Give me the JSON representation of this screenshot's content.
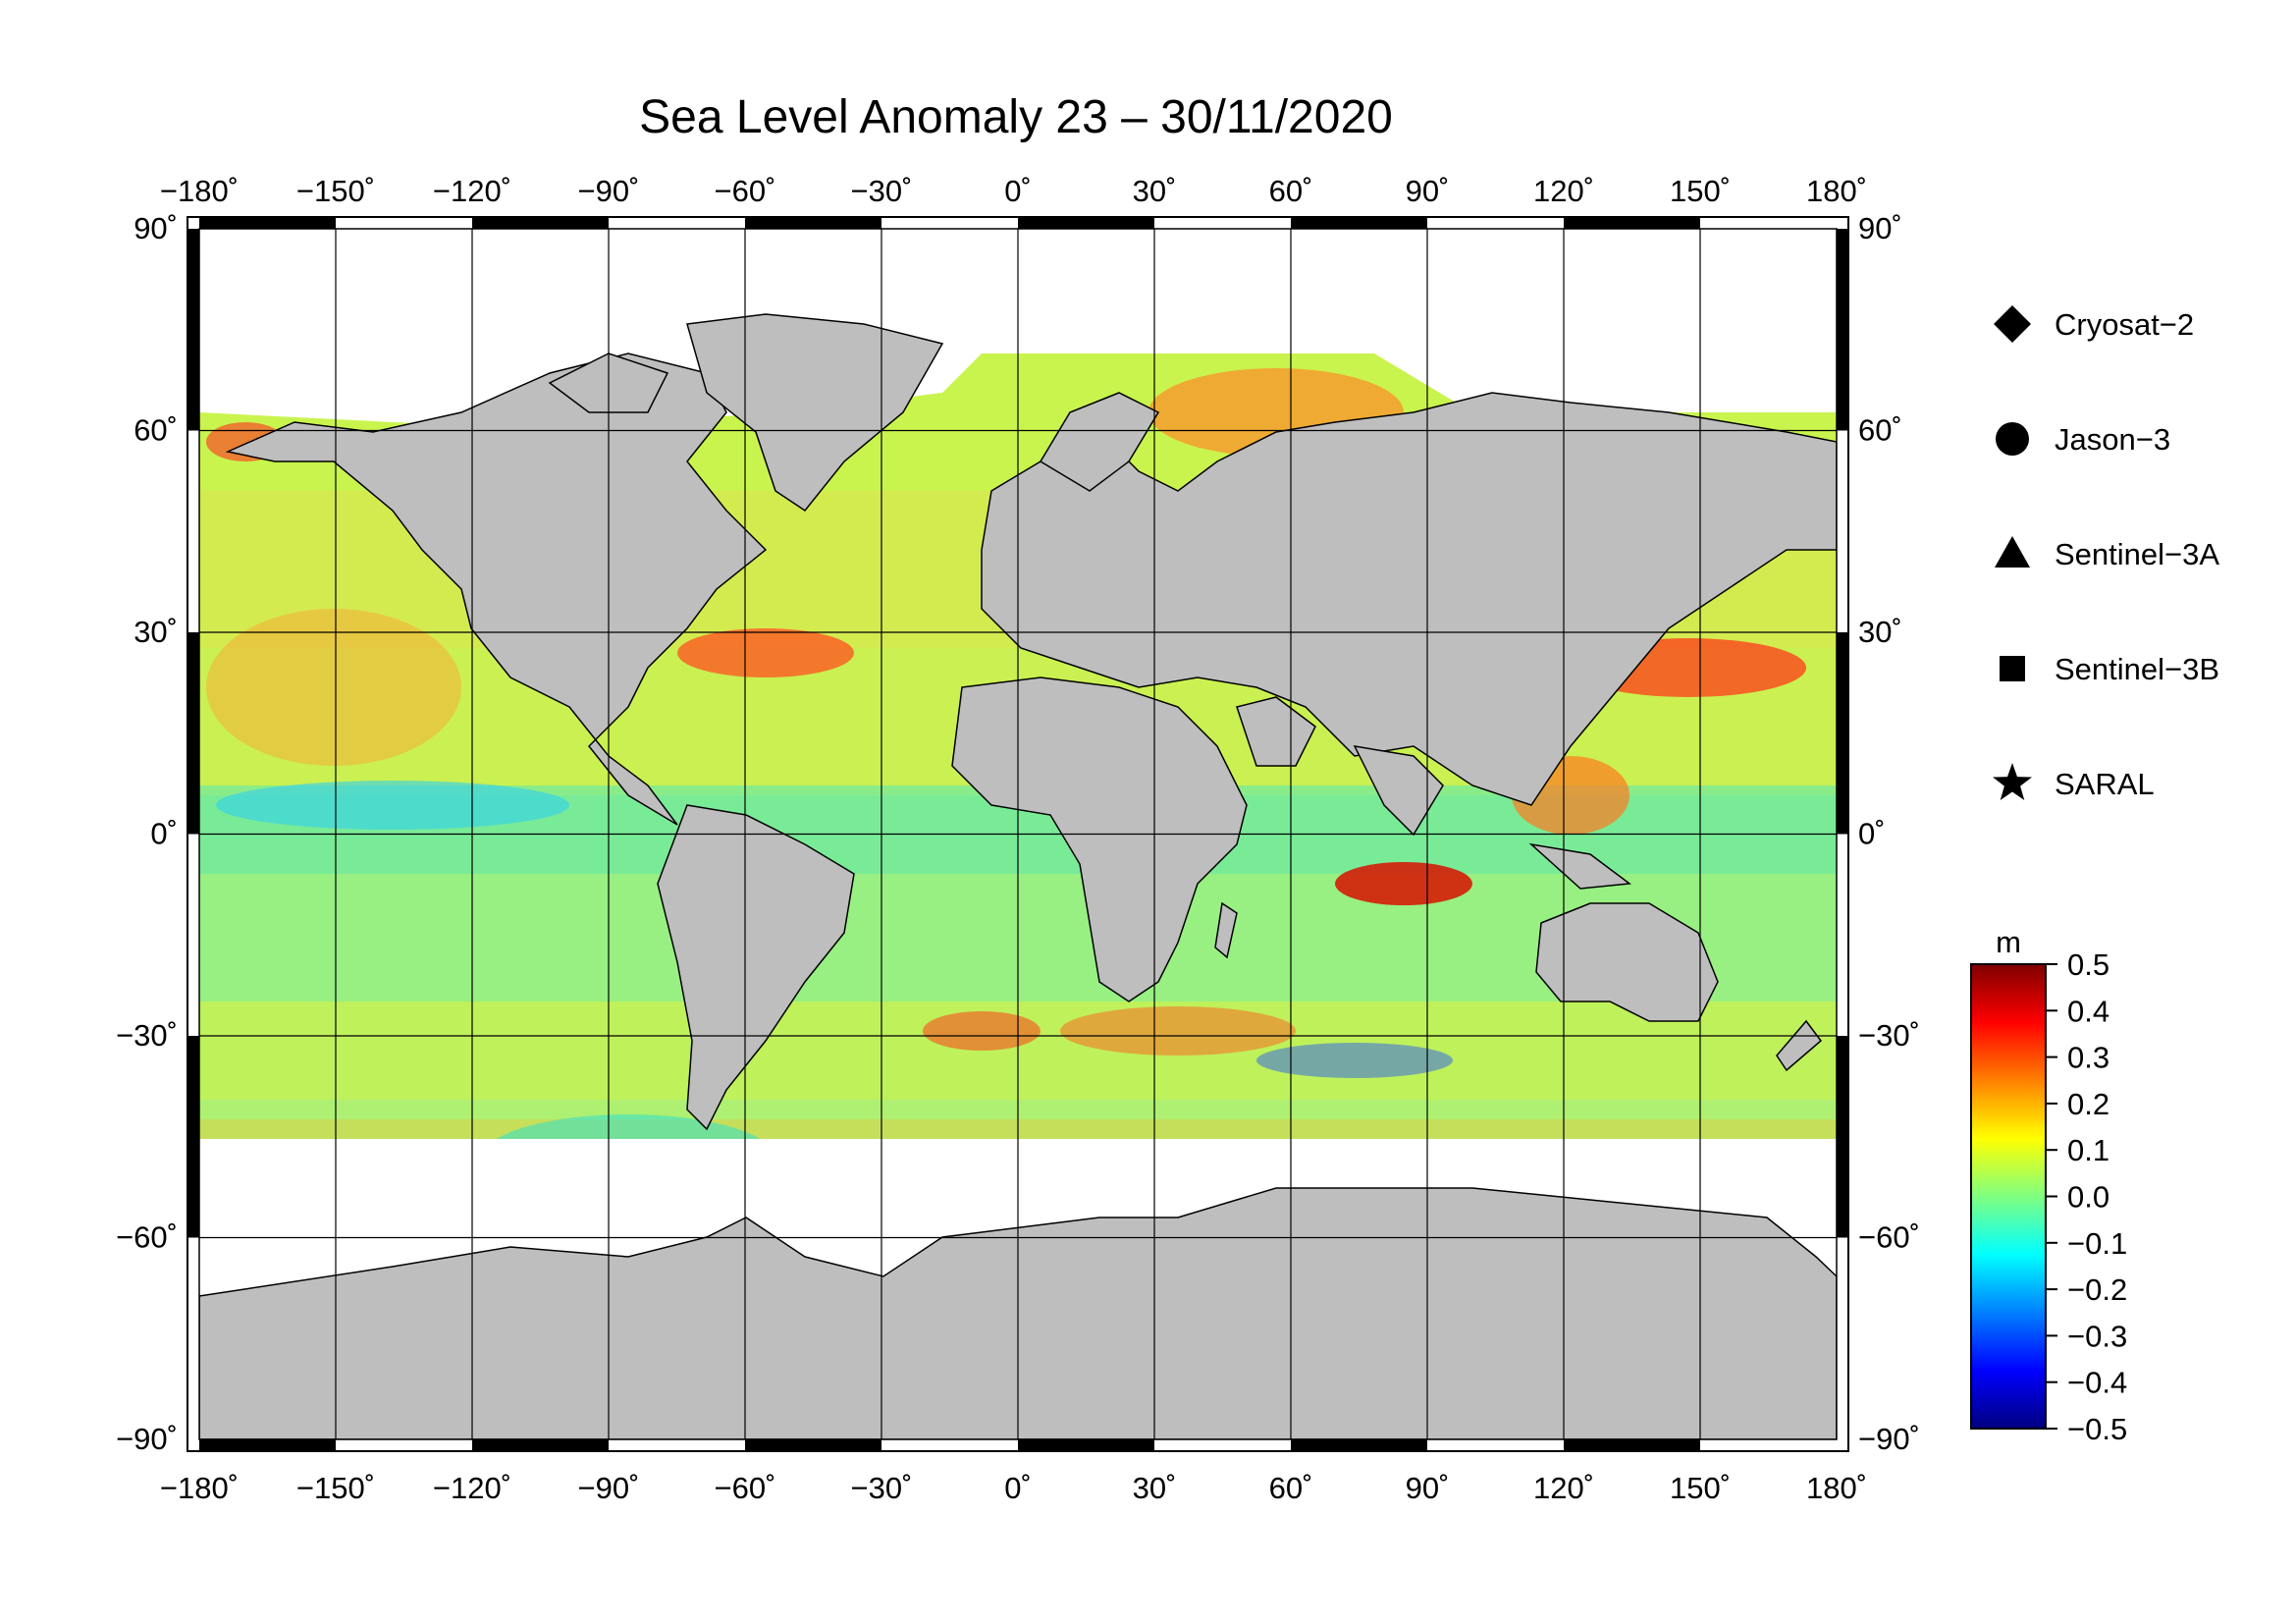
{
  "title": "Sea Level Anomaly 23 – 30/11/2020",
  "map": {
    "projection": "equirectangular",
    "lon_range": [
      -180,
      180
    ],
    "lat_range": [
      -90,
      90
    ],
    "lon_ticks": [
      {
        "value": -180,
        "label": "−180˚"
      },
      {
        "value": -150,
        "label": "−150˚"
      },
      {
        "value": -120,
        "label": "−120˚"
      },
      {
        "value": -90,
        "label": "−90˚"
      },
      {
        "value": -60,
        "label": "−60˚"
      },
      {
        "value": -30,
        "label": "−30˚"
      },
      {
        "value": 0,
        "label": "0˚"
      },
      {
        "value": 30,
        "label": "30˚"
      },
      {
        "value": 60,
        "label": "60˚"
      },
      {
        "value": 90,
        "label": "90˚"
      },
      {
        "value": 120,
        "label": "120˚"
      },
      {
        "value": 150,
        "label": "150˚"
      },
      {
        "value": 180,
        "label": "180˚"
      }
    ],
    "lat_ticks": [
      {
        "value": 90,
        "label": "90˚"
      },
      {
        "value": 60,
        "label": "60˚"
      },
      {
        "value": 30,
        "label": "30˚"
      },
      {
        "value": 0,
        "label": "0˚"
      },
      {
        "value": -30,
        "label": "−30˚"
      },
      {
        "value": -60,
        "label": "−60˚"
      },
      {
        "value": -90,
        "label": "−90˚"
      }
    ],
    "land_color": "#bebebe",
    "ice_color": "#ffffff"
  },
  "legend": {
    "satellites": [
      {
        "name": "Cryosat−2",
        "marker": "diamond"
      },
      {
        "name": "Jason−3",
        "marker": "circle"
      },
      {
        "name": "Sentinel−3A",
        "marker": "triangle"
      },
      {
        "name": "Sentinel−3B",
        "marker": "square"
      },
      {
        "name": "SARAL",
        "marker": "star"
      }
    ]
  },
  "colorbar": {
    "unit": "m",
    "min": -0.5,
    "max": 0.5,
    "ticks": [
      {
        "value": 0.5,
        "label": "0.5"
      },
      {
        "value": 0.4,
        "label": "0.4"
      },
      {
        "value": 0.3,
        "label": "0.3"
      },
      {
        "value": 0.2,
        "label": "0.2"
      },
      {
        "value": 0.1,
        "label": "0.1"
      },
      {
        "value": 0.0,
        "label": "0.0"
      },
      {
        "value": -0.1,
        "label": "−0.1"
      },
      {
        "value": -0.2,
        "label": "−0.2"
      },
      {
        "value": -0.3,
        "label": "−0.3"
      },
      {
        "value": -0.4,
        "label": "−0.4"
      },
      {
        "value": -0.5,
        "label": "−0.5"
      }
    ],
    "stops": [
      "#00007f",
      "#0000ff",
      "#0080ff",
      "#00ffff",
      "#80ff80",
      "#ffff00",
      "#ff8000",
      "#ff0000",
      "#7f0000"
    ]
  }
}
